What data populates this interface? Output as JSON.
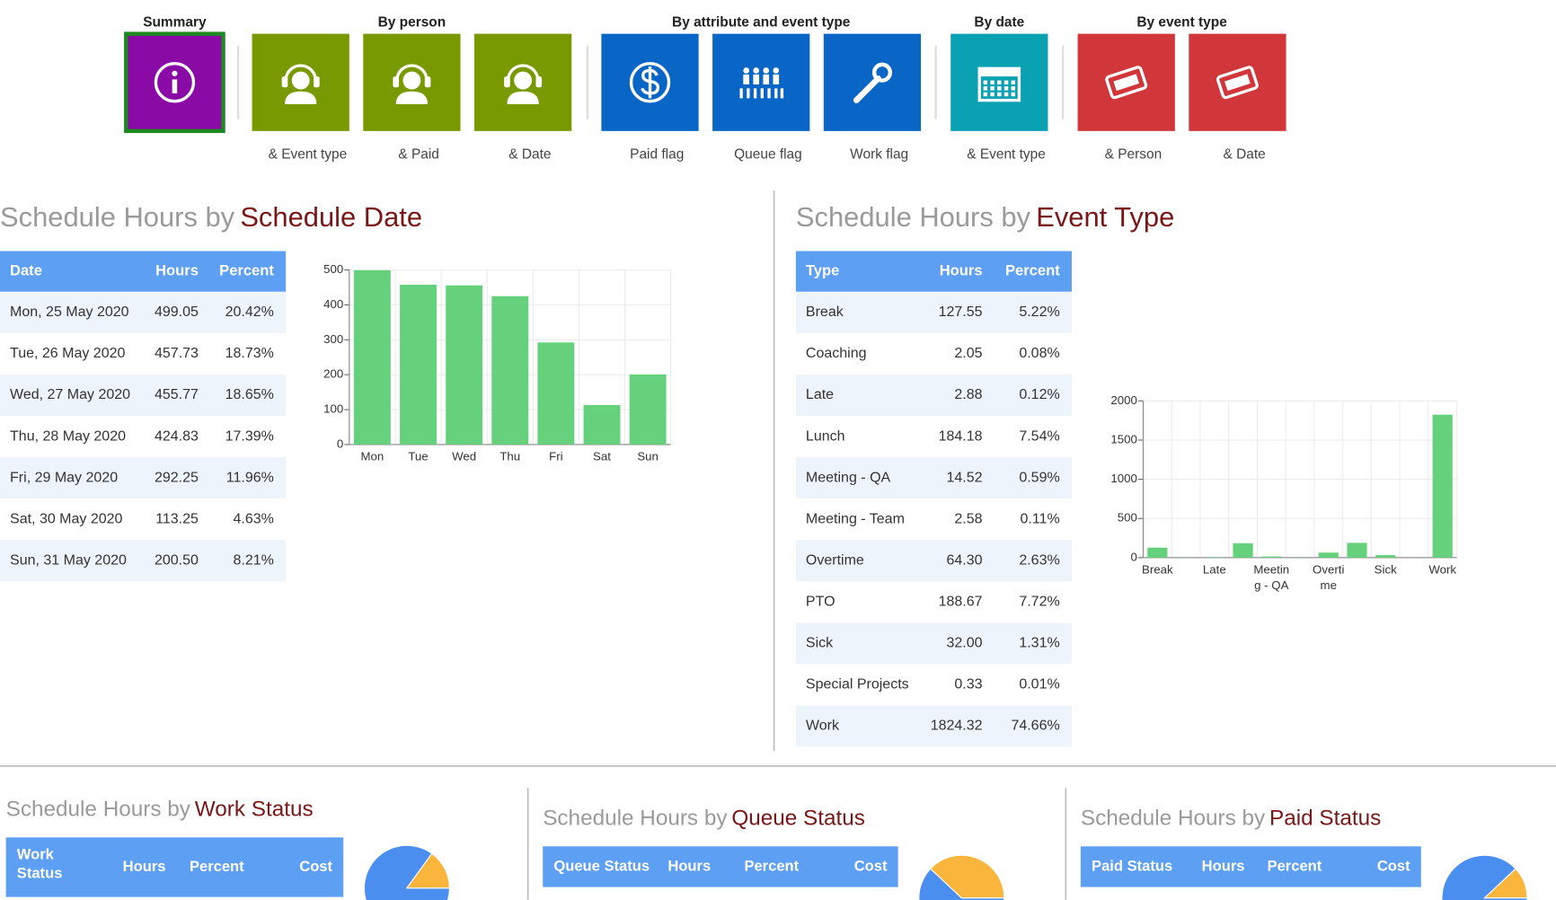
{
  "nav": {
    "groups": [
      {
        "label": "Summary",
        "color": "#8a0aa6",
        "tiles": [
          {}
        ]
      },
      {
        "label": "By person",
        "color": "#789a00",
        "tiles": [
          {
            "caption": "& Event type"
          },
          {
            "caption": "& Paid"
          },
          {
            "caption": "& Date"
          }
        ]
      },
      {
        "label": "By attribute and event type",
        "color": "#0a66c6",
        "tiles": [
          {
            "caption": "Paid flag"
          },
          {
            "caption": "Queue flag"
          },
          {
            "caption": "Work flag"
          }
        ]
      },
      {
        "label": "By date",
        "color": "#0aa1b2",
        "tiles": [
          {
            "caption": "& Event type"
          }
        ]
      },
      {
        "label": "By event type",
        "color": "#d0363a",
        "tiles": [
          {
            "caption": "& Person"
          },
          {
            "caption": "& Date"
          }
        ]
      }
    ]
  },
  "date_section": {
    "title_prefix": "Schedule Hours by",
    "title_subject": "Schedule Date",
    "table": {
      "headers": [
        "Date",
        "Hours",
        "Percent"
      ],
      "rows": [
        [
          "Mon, 25 May 2020",
          "499.05",
          "20.42%"
        ],
        [
          "Tue, 26 May 2020",
          "457.73",
          "18.73%"
        ],
        [
          "Wed, 27 May 2020",
          "455.77",
          "18.65%"
        ],
        [
          "Thu, 28 May 2020",
          "424.83",
          "17.39%"
        ],
        [
          "Fri, 29 May 2020",
          "292.25",
          "11.96%"
        ],
        [
          "Sat, 30 May 2020",
          "113.25",
          "4.63%"
        ],
        [
          "Sun, 31 May 2020",
          "200.50",
          "8.21%"
        ]
      ]
    },
    "chart": {
      "type": "bar",
      "categories": [
        "Mon",
        "Tue",
        "Wed",
        "Thu",
        "Fri",
        "Sat",
        "Sun"
      ],
      "values": [
        499.05,
        457.73,
        455.77,
        424.83,
        292.25,
        113.25,
        200.5
      ],
      "color": "#66d17c",
      "ylim": [
        0,
        500
      ],
      "yticks": [
        0,
        100,
        200,
        300,
        400,
        500
      ],
      "grid": true
    }
  },
  "event_section": {
    "title_prefix": "Schedule Hours by",
    "title_subject": "Event Type",
    "table": {
      "headers": [
        "Type",
        "Hours",
        "Percent"
      ],
      "rows": [
        [
          "Break",
          "127.55",
          "5.22%"
        ],
        [
          "Coaching",
          "2.05",
          "0.08%"
        ],
        [
          "Late",
          "2.88",
          "0.12%"
        ],
        [
          "Lunch",
          "184.18",
          "7.54%"
        ],
        [
          "Meeting - QA",
          "14.52",
          "0.59%"
        ],
        [
          "Meeting - Team",
          "2.58",
          "0.11%"
        ],
        [
          "Overtime",
          "64.30",
          "2.63%"
        ],
        [
          "PTO",
          "188.67",
          "7.72%"
        ],
        [
          "Sick",
          "32.00",
          "1.31%"
        ],
        [
          "Special Projects",
          "0.33",
          "0.01%"
        ],
        [
          "Work",
          "1824.32",
          "74.66%"
        ]
      ]
    },
    "chart": {
      "type": "bar",
      "categories": [
        "Break",
        null,
        "Late",
        null,
        "Meeting - QA",
        null,
        "Overtime",
        null,
        "Sick",
        null,
        "Work"
      ],
      "values": [
        127.55,
        2.05,
        2.88,
        184.18,
        14.52,
        2.58,
        64.3,
        188.67,
        32,
        0.33,
        1824.32
      ],
      "color": "#66d17c",
      "ylim": [
        0,
        2000
      ],
      "yticks": [
        0,
        500,
        1000,
        1500,
        2000
      ],
      "grid": true
    }
  },
  "work_section": {
    "title_prefix": "Schedule Hours by",
    "title_subject": "Work Status",
    "table": {
      "headers": [
        "Work Status",
        "Hours",
        "Percent",
        "Cost"
      ]
    },
    "chart": {
      "type": "pie",
      "values": [
        85,
        15
      ],
      "colors": [
        "#4a8ef0",
        "#f9b53c"
      ]
    }
  },
  "queue_section": {
    "title_prefix": "Schedule Hours by",
    "title_subject": "Queue Status",
    "table": {
      "headers": [
        "Queue Status",
        "Hours",
        "Percent",
        "Cost"
      ]
    },
    "chart": {
      "type": "pie",
      "values": [
        62,
        38
      ],
      "colors": [
        "#4a8ef0",
        "#f9b53c"
      ]
    }
  },
  "paid_section": {
    "title_prefix": "Schedule Hours by",
    "title_subject": "Paid Status",
    "table": {
      "headers": [
        "Paid Status",
        "Hours",
        "Percent",
        "Cost"
      ]
    },
    "chart": {
      "type": "pie",
      "values": [
        88,
        12
      ],
      "colors": [
        "#4a8ef0",
        "#f9b53c"
      ]
    }
  }
}
